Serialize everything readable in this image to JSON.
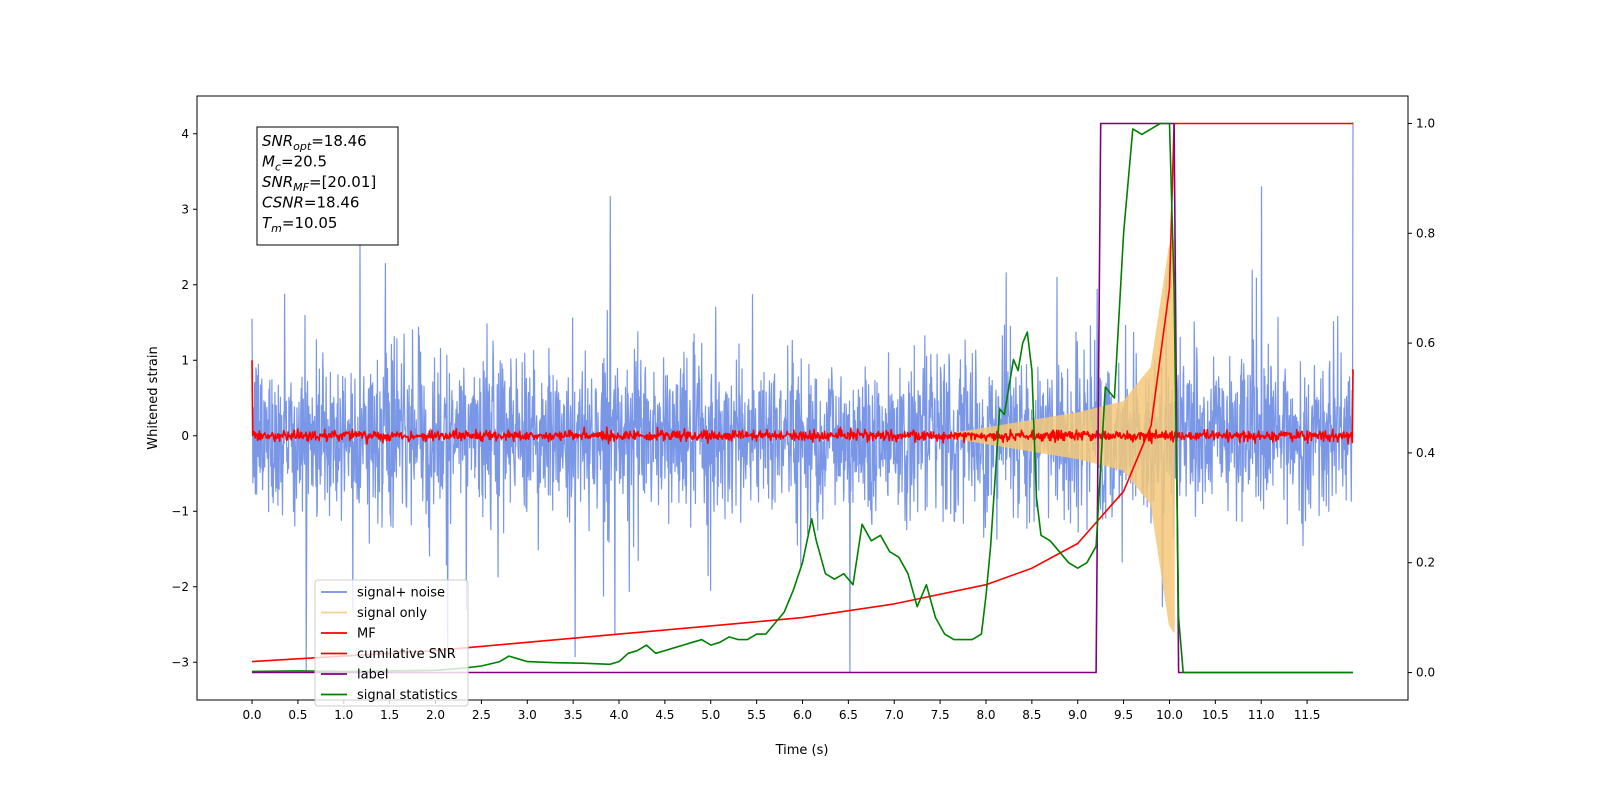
{
  "chart_data": {
    "type": "line",
    "xlabel": "Time (s)",
    "ylabel": "Whitened strain",
    "xlim": [
      -0.6,
      12.6
    ],
    "ylim": [
      -3.5,
      4.5
    ],
    "y2lim": [
      -0.05,
      1.05
    ],
    "xticks": [
      0.0,
      0.5,
      1.0,
      1.5,
      2.0,
      2.5,
      3.0,
      3.5,
      4.0,
      4.5,
      5.0,
      5.5,
      6.0,
      6.5,
      7.0,
      7.5,
      8.0,
      8.5,
      9.0,
      9.5,
      10.0,
      10.5,
      11.0,
      11.5
    ],
    "xtick_labels": [
      "0.0",
      "0.5",
      "1.0",
      "1.5",
      "2.0",
      "2.5",
      "3.0",
      "3.5",
      "4.0",
      "4.5",
      "5.0",
      "5.5",
      "6.0",
      "6.5",
      "7.0",
      "7.5",
      "8.0",
      "8.5",
      "9.0",
      "9.5",
      "10.0",
      "10.5",
      "11.0",
      "11.5"
    ],
    "yticks": [
      -3,
      -2,
      -1,
      0,
      1,
      2,
      3,
      4
    ],
    "ytick_labels": [
      "−3",
      "−2",
      "−1",
      "0",
      "1",
      "2",
      "3",
      "4"
    ],
    "y2ticks": [
      0.0,
      0.2,
      0.4,
      0.6,
      0.8,
      1.0
    ],
    "y2tick_labels": [
      "0.0",
      "0.2",
      "0.4",
      "0.6",
      "0.8",
      "1.0"
    ],
    "grid": false,
    "legend_position": "lower-left",
    "annotation": [
      {
        "base": "SNR",
        "sub": "opt",
        "value": "=18.46"
      },
      {
        "base": "M",
        "sub": "c",
        "value": "=20.5"
      },
      {
        "base": "SNR",
        "sub": "MF",
        "value": "=[20.01]"
      },
      {
        "base": "CSNR",
        "sub": "",
        "value": "=18.46"
      },
      {
        "base": "T",
        "sub": "m",
        "value": "=10.05"
      }
    ],
    "series": [
      {
        "name": "signal+ noise",
        "axis": "left",
        "color": "#7391e6",
        "kind": "noise",
        "x_range": [
          0.0,
          12.0
        ],
        "amplitude_sigma": 0.55,
        "spikes_max": 3.3,
        "endpoints": [
          1.55,
          4.15
        ]
      },
      {
        "name": "signal only",
        "axis": "left",
        "color": "#f5c878",
        "kind": "chirp",
        "x_range": [
          7.6,
          10.05
        ],
        "envelope_x": [
          7.6,
          8.5,
          9.0,
          9.5,
          9.8,
          10.0,
          10.05
        ],
        "envelope_y": [
          0.02,
          0.2,
          0.3,
          0.45,
          0.9,
          2.5,
          2.6
        ]
      },
      {
        "name": "MF",
        "axis": "left",
        "color": "#ff0000",
        "kind": "mf",
        "x_range": [
          0.0,
          12.0
        ],
        "start_value": 1.0,
        "end_value": 0.88,
        "noise_sigma": 0.035
      },
      {
        "name": "cumilative SNR",
        "axis": "right",
        "color": "#ff0000",
        "kind": "line",
        "x": [
          0.0,
          1.0,
          2.0,
          3.0,
          4.0,
          5.0,
          6.0,
          7.0,
          8.0,
          8.5,
          9.0,
          9.5,
          9.8,
          10.0,
          10.05,
          12.0
        ],
        "y": [
          0.02,
          0.03,
          0.04,
          0.055,
          0.07,
          0.085,
          0.1,
          0.125,
          0.16,
          0.19,
          0.235,
          0.33,
          0.45,
          0.7,
          1.0,
          1.0
        ]
      },
      {
        "name": "label",
        "axis": "right",
        "color": "#800080",
        "kind": "line",
        "x": [
          0.0,
          9.2,
          9.25,
          10.05,
          10.1,
          12.0
        ],
        "y": [
          0.0,
          0.0,
          1.0,
          1.0,
          0.0,
          0.0
        ]
      },
      {
        "name": "signal statistics",
        "axis": "right",
        "color": "#008000",
        "kind": "line",
        "x": [
          0.0,
          0.5,
          1.0,
          1.5,
          2.0,
          2.3,
          2.5,
          2.7,
          2.8,
          2.9,
          3.0,
          3.3,
          3.6,
          3.9,
          4.0,
          4.1,
          4.2,
          4.3,
          4.4,
          4.5,
          4.6,
          4.7,
          4.8,
          4.9,
          5.0,
          5.1,
          5.2,
          5.3,
          5.4,
          5.5,
          5.6,
          5.7,
          5.8,
          5.9,
          6.0,
          6.1,
          6.15,
          6.25,
          6.35,
          6.45,
          6.55,
          6.65,
          6.75,
          6.85,
          6.95,
          7.05,
          7.15,
          7.25,
          7.35,
          7.45,
          7.55,
          7.65,
          7.75,
          7.85,
          7.95,
          8.0,
          8.05,
          8.15,
          8.2,
          8.3,
          8.35,
          8.4,
          8.45,
          8.5,
          8.55,
          8.6,
          8.7,
          8.8,
          8.9,
          9.0,
          9.1,
          9.2,
          9.3,
          9.4,
          9.5,
          9.6,
          9.7,
          9.8,
          9.9,
          10.0,
          10.05,
          10.1,
          10.15,
          11.0,
          12.0
        ],
        "y": [
          0.002,
          0.003,
          0.002,
          0.003,
          0.004,
          0.008,
          0.012,
          0.02,
          0.03,
          0.025,
          0.02,
          0.018,
          0.017,
          0.015,
          0.02,
          0.035,
          0.04,
          0.05,
          0.035,
          0.04,
          0.045,
          0.05,
          0.055,
          0.06,
          0.05,
          0.055,
          0.065,
          0.06,
          0.06,
          0.07,
          0.07,
          0.09,
          0.11,
          0.15,
          0.2,
          0.28,
          0.24,
          0.18,
          0.17,
          0.18,
          0.16,
          0.27,
          0.24,
          0.25,
          0.22,
          0.21,
          0.18,
          0.12,
          0.16,
          0.1,
          0.07,
          0.06,
          0.06,
          0.06,
          0.07,
          0.14,
          0.23,
          0.48,
          0.47,
          0.57,
          0.55,
          0.6,
          0.62,
          0.55,
          0.32,
          0.25,
          0.24,
          0.22,
          0.2,
          0.19,
          0.2,
          0.23,
          0.52,
          0.5,
          0.8,
          0.99,
          0.98,
          0.99,
          1.0,
          1.0,
          0.7,
          0.1,
          0.0,
          0.0,
          0.0
        ]
      }
    ]
  }
}
